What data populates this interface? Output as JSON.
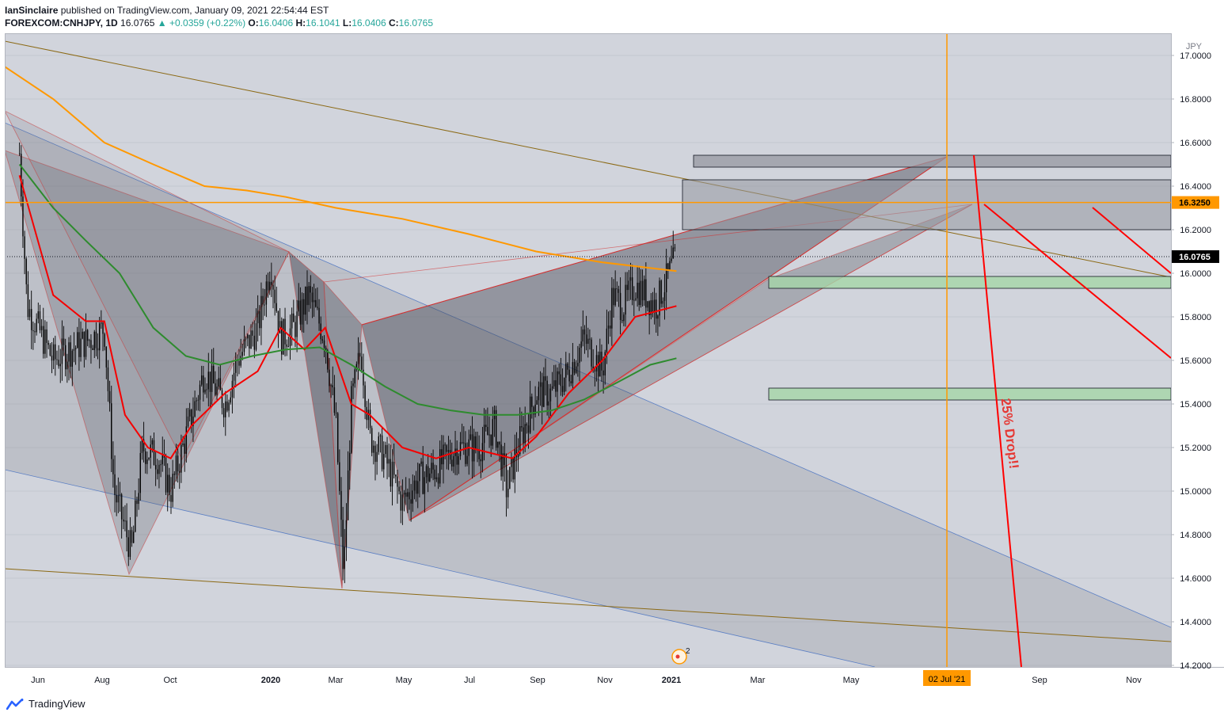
{
  "header": {
    "author": "IanSinclaire",
    "published_text": "published on TradingView.com, January 09, 2021 22:54:44 EST",
    "symbol": "FOREXCOM:CNHJPY, 1D",
    "last": "16.0765",
    "change": "+0.0359 (+0.22%)",
    "o_label": "O:",
    "o": "16.0406",
    "h_label": "H:",
    "h": "16.1041",
    "l_label": "L:",
    "l": "16.0406",
    "c_label": "C:",
    "c": "16.0765"
  },
  "footer": {
    "brand": "TradingView"
  },
  "colors": {
    "background": "#d1d4dc",
    "candle": "#000000",
    "ma_red": "#f50000",
    "ma_green": "#2e8b2e",
    "ma_orange": "#ff9800",
    "trend_brown": "#8b6914",
    "channel_blue": "#5b7fc4",
    "target_red": "#ff0000",
    "zone_green": "#a5d6a7",
    "zone_grey": "#9598a1"
  },
  "chart_data": {
    "type": "candlestick",
    "currency": "JPY",
    "y_ticks": [
      "14.2000",
      "14.4000",
      "14.6000",
      "14.8000",
      "15.0000",
      "15.2000",
      "15.4000",
      "15.6000",
      "15.8000",
      "16.0000",
      "16.2000",
      "16.4000",
      "16.6000",
      "16.8000",
      "17.0000"
    ],
    "ylim": [
      14.2,
      17.05
    ],
    "x_ticks": [
      {
        "label": "Jun",
        "bold": false
      },
      {
        "label": "Aug",
        "bold": false
      },
      {
        "label": "Oct",
        "bold": false
      },
      {
        "label": "2020",
        "bold": true
      },
      {
        "label": "Mar",
        "bold": false
      },
      {
        "label": "May",
        "bold": false
      },
      {
        "label": "Jul",
        "bold": false
      },
      {
        "label": "Sep",
        "bold": false
      },
      {
        "label": "Nov",
        "bold": false
      },
      {
        "label": "2021",
        "bold": true
      },
      {
        "label": "Mar",
        "bold": false
      },
      {
        "label": "May",
        "bold": false
      },
      {
        "label": "Sep",
        "bold": false
      },
      {
        "label": "Nov",
        "bold": false
      }
    ],
    "price_labels": {
      "horizontal_level": "16.3250",
      "last_price": "16.0765"
    },
    "vertical_marker_label": "02 Jul '21",
    "annotation_text": "25% Drop!!",
    "event_badge": "2",
    "candle_anchors": [
      [
        "2019-05-15",
        16.55
      ],
      [
        "2019-05-22",
        15.85
      ],
      [
        "2019-06-01",
        15.75
      ],
      [
        "2019-06-15",
        15.6
      ],
      [
        "2019-07-01",
        15.65
      ],
      [
        "2019-07-20",
        15.7
      ],
      [
        "2019-08-01",
        15.75
      ],
      [
        "2019-08-10",
        15.0
      ],
      [
        "2019-08-26",
        14.72
      ],
      [
        "2019-09-05",
        15.2
      ],
      [
        "2019-09-20",
        15.15
      ],
      [
        "2019-10-01",
        15.0
      ],
      [
        "2019-10-15",
        15.25
      ],
      [
        "2019-11-01",
        15.55
      ],
      [
        "2019-11-20",
        15.4
      ],
      [
        "2019-12-01",
        15.6
      ],
      [
        "2019-12-20",
        15.75
      ],
      [
        "2020-01-01",
        16.05
      ],
      [
        "2020-01-10",
        15.7
      ],
      [
        "2020-01-22",
        15.75
      ],
      [
        "2020-02-05",
        15.9
      ],
      [
        "2020-02-20",
        15.7
      ],
      [
        "2020-03-01",
        15.3
      ],
      [
        "2020-03-08",
        14.6
      ],
      [
        "2020-03-15",
        15.4
      ],
      [
        "2020-03-24",
        15.65
      ],
      [
        "2020-04-01",
        15.25
      ],
      [
        "2020-04-15",
        15.15
      ],
      [
        "2020-05-01",
        14.95
      ],
      [
        "2020-05-15",
        15.05
      ],
      [
        "2020-06-01",
        15.1
      ],
      [
        "2020-06-20",
        15.2
      ],
      [
        "2020-07-10",
        15.2
      ],
      [
        "2020-07-25",
        15.3
      ],
      [
        "2020-08-05",
        15.0
      ],
      [
        "2020-08-15",
        15.2
      ],
      [
        "2020-09-01",
        15.45
      ],
      [
        "2020-09-15",
        15.45
      ],
      [
        "2020-10-01",
        15.55
      ],
      [
        "2020-10-15",
        15.7
      ],
      [
        "2020-11-01",
        15.55
      ],
      [
        "2020-11-10",
        15.9
      ],
      [
        "2020-11-20",
        15.85
      ],
      [
        "2020-12-01",
        15.95
      ],
      [
        "2020-12-20",
        15.85
      ],
      [
        "2021-01-08",
        16.08
      ]
    ],
    "series": [
      {
        "name": "MA red",
        "color": "#f50000",
        "points": [
          [
            "2019-05-15",
            16.45
          ],
          [
            "2019-06-15",
            15.9
          ],
          [
            "2019-07-15",
            15.78
          ],
          [
            "2019-08-01",
            15.78
          ],
          [
            "2019-08-20",
            15.35
          ],
          [
            "2019-09-10",
            15.2
          ],
          [
            "2019-10-01",
            15.15
          ],
          [
            "2019-10-20",
            15.3
          ],
          [
            "2019-11-20",
            15.45
          ],
          [
            "2019-12-20",
            15.55
          ],
          [
            "2020-01-10",
            15.75
          ],
          [
            "2020-02-01",
            15.65
          ],
          [
            "2020-02-20",
            15.75
          ],
          [
            "2020-03-15",
            15.4
          ],
          [
            "2020-04-01",
            15.35
          ],
          [
            "2020-05-01",
            15.2
          ],
          [
            "2020-06-01",
            15.15
          ],
          [
            "2020-07-01",
            15.2
          ],
          [
            "2020-08-10",
            15.15
          ],
          [
            "2020-09-01",
            15.25
          ],
          [
            "2020-10-01",
            15.45
          ],
          [
            "2020-11-01",
            15.6
          ],
          [
            "2020-12-01",
            15.8
          ],
          [
            "2021-01-08",
            15.85
          ]
        ]
      },
      {
        "name": "MA green",
        "color": "#2e8b2e",
        "points": [
          [
            "2019-05-15",
            16.5
          ],
          [
            "2019-06-15",
            16.3
          ],
          [
            "2019-07-15",
            16.15
          ],
          [
            "2019-08-15",
            16.0
          ],
          [
            "2019-09-15",
            15.75
          ],
          [
            "2019-10-15",
            15.62
          ],
          [
            "2019-11-15",
            15.58
          ],
          [
            "2019-12-15",
            15.62
          ],
          [
            "2020-01-15",
            15.65
          ],
          [
            "2020-02-15",
            15.66
          ],
          [
            "2020-03-15",
            15.58
          ],
          [
            "2020-04-15",
            15.48
          ],
          [
            "2020-05-15",
            15.4
          ],
          [
            "2020-06-15",
            15.37
          ],
          [
            "2020-07-15",
            15.35
          ],
          [
            "2020-08-15",
            15.35
          ],
          [
            "2020-09-15",
            15.37
          ],
          [
            "2020-10-15",
            15.42
          ],
          [
            "2020-11-15",
            15.5
          ],
          [
            "2020-12-15",
            15.58
          ],
          [
            "2021-01-08",
            15.61
          ]
        ]
      },
      {
        "name": "MA orange",
        "color": "#ff9800",
        "points": [
          [
            "2019-05-01",
            16.95
          ],
          [
            "2019-06-15",
            16.8
          ],
          [
            "2019-08-01",
            16.6
          ],
          [
            "2019-09-15",
            16.5
          ],
          [
            "2019-11-01",
            16.4
          ],
          [
            "2019-12-10",
            16.38
          ],
          [
            "2020-01-15",
            16.35
          ],
          [
            "2020-03-01",
            16.3
          ],
          [
            "2020-05-01",
            16.25
          ],
          [
            "2020-07-01",
            16.18
          ],
          [
            "2020-09-01",
            16.1
          ],
          [
            "2020-11-01",
            16.05
          ],
          [
            "2021-01-08",
            16.01
          ]
        ]
      }
    ]
  }
}
